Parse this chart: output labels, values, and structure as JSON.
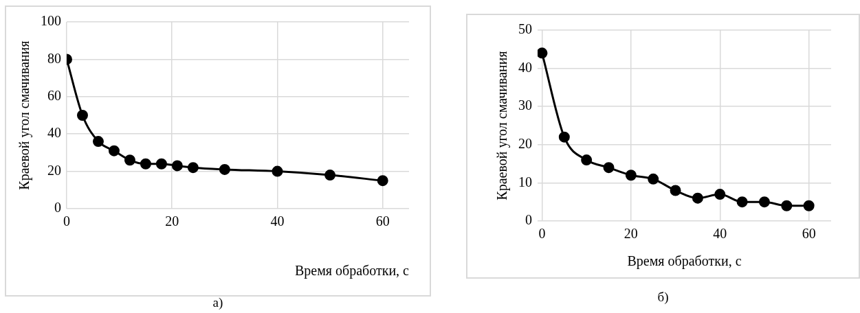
{
  "chart_data": [
    {
      "type": "line",
      "xlabel": "Время обработки, с",
      "ylabel": "Краевой угол смачивания",
      "annotations": [
        "а)"
      ],
      "x": [
        0,
        3,
        6,
        9,
        12,
        15,
        18,
        21,
        24,
        30,
        40,
        50,
        60
      ],
      "series": [
        {
          "color": "#000000",
          "values": [
            80,
            50,
            36,
            31,
            26,
            24,
            24,
            23,
            22,
            21,
            20,
            18,
            15
          ]
        }
      ],
      "xlim": [
        0,
        65
      ],
      "xticks": [
        0,
        20,
        40,
        60
      ],
      "ylim": [
        0,
        100
      ],
      "yticks": [
        0,
        20,
        40,
        60,
        80,
        100
      ],
      "grid": true,
      "legend": false,
      "marker": "circle",
      "line_style": "solid"
    },
    {
      "type": "line",
      "xlabel": "Время обработки, с",
      "ylabel": "Краевой угол смачивания",
      "annotations": [
        "б)"
      ],
      "x": [
        0,
        5,
        10,
        15,
        20,
        25,
        30,
        35,
        40,
        45,
        50,
        55,
        60
      ],
      "series": [
        {
          "color": "#000000",
          "values": [
            44,
            22,
            16,
            14,
            12,
            11,
            8,
            6,
            7,
            5,
            5,
            4,
            4
          ]
        }
      ],
      "xlim": [
        -1,
        65
      ],
      "xticks": [
        0,
        20,
        40,
        60
      ],
      "ylim": [
        0,
        50
      ],
      "yticks": [
        0,
        10,
        20,
        30,
        40,
        50
      ],
      "grid": true,
      "legend": false,
      "marker": "circle",
      "line_style": "solid"
    }
  ]
}
